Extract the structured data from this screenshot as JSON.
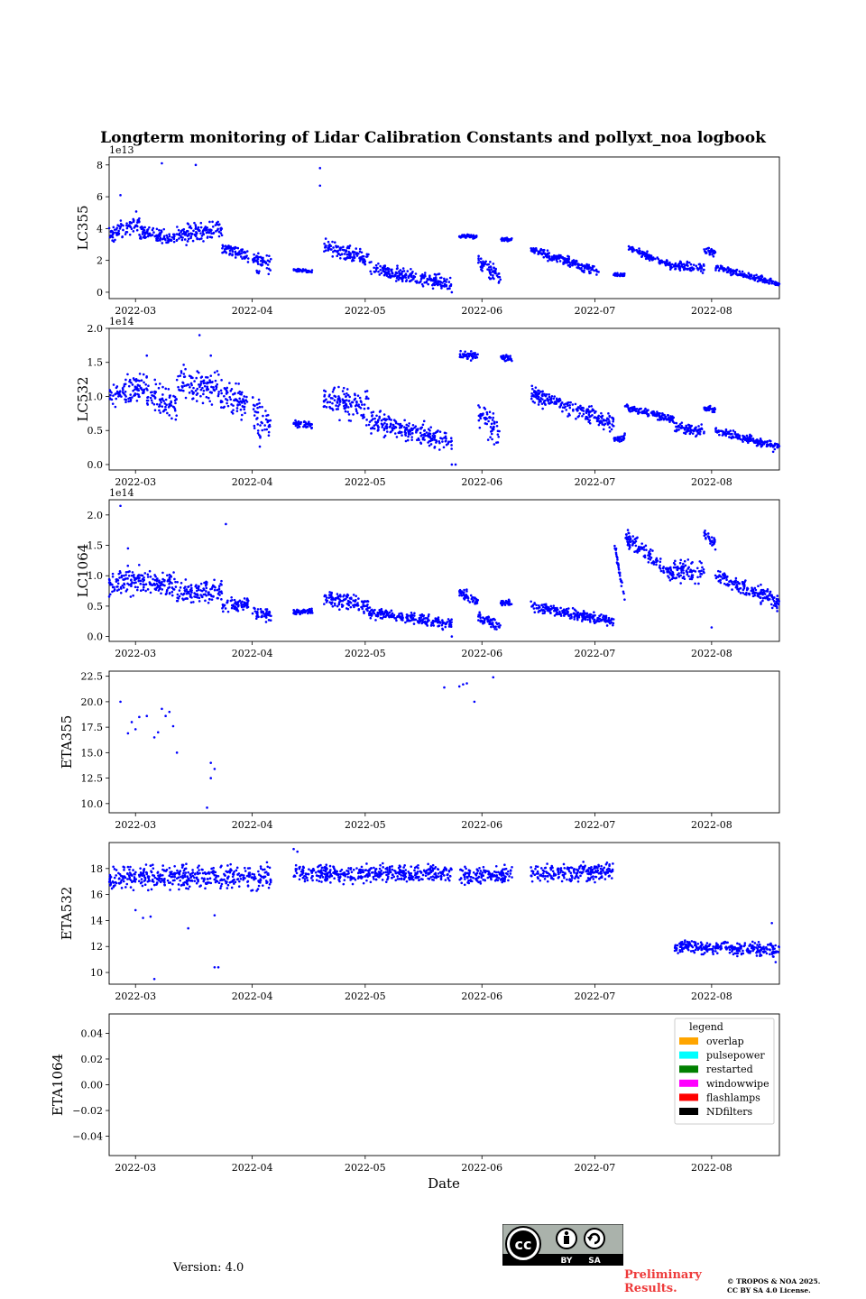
{
  "figure": {
    "title": "Longterm monitoring of Lidar Calibration Constants and pollyxt_noa logbook",
    "xlabel": "Date",
    "version": "Version: 4.0",
    "preliminary": [
      "Preliminary",
      "Results."
    ],
    "copyright": [
      "© TROPOS & NOA 2025.",
      "CC BY SA 4.0 License."
    ],
    "license_badge": {
      "by": "BY",
      "sa": "SA",
      "cc": "cc"
    }
  },
  "colors": {
    "points": "#0000ff",
    "overlap": "#ffa500",
    "pulsepower": "#00ffff",
    "restarted": "#008000",
    "windowwipe": "#ff00ff",
    "flashlamps": "#ff0000",
    "NDfilters": "#000000"
  },
  "chart_data": [
    {
      "type": "scatter",
      "ylabel": "LC355",
      "offset_text": "1e13",
      "xlim": [
        "2022-02-22",
        "2022-08-19"
      ],
      "x_ticks": [
        "2022-03",
        "2022-04",
        "2022-05",
        "2022-06",
        "2022-07",
        "2022-08"
      ],
      "ylim": [
        -0.4,
        8.5
      ],
      "y_ticks": [
        "0",
        "2",
        "4",
        "6",
        "8"
      ],
      "y_tick_values": [
        0,
        2,
        4,
        6,
        8
      ],
      "segments": [
        {
          "x": [
            "2022-02-22",
            "2022-03-02"
          ],
          "y": [
            3.5,
            4.5
          ],
          "noise": 0.6
        },
        {
          "x": [
            "2022-03-02",
            "2022-03-12"
          ],
          "y": [
            3.8,
            3.3
          ],
          "noise": 0.4
        },
        {
          "x": [
            "2022-03-12",
            "2022-03-24"
          ],
          "y": [
            3.7,
            4.0
          ],
          "noise": 0.6
        },
        {
          "x": [
            "2022-03-24",
            "2022-03-31"
          ],
          "y": [
            2.8,
            2.3
          ],
          "noise": 0.4
        },
        {
          "x": [
            "2022-04-01",
            "2022-04-06"
          ],
          "y": [
            2.0,
            1.8
          ],
          "noise": 0.6
        },
        {
          "x": [
            "2022-04-12",
            "2022-04-17"
          ],
          "y": [
            1.4,
            1.3
          ],
          "noise": 0.1
        },
        {
          "x": [
            "2022-04-20",
            "2022-05-02"
          ],
          "y": [
            3.0,
            2.0
          ],
          "noise": 0.5
        },
        {
          "x": [
            "2022-05-02",
            "2022-05-24"
          ],
          "y": [
            1.5,
            0.5
          ],
          "noise": 0.4
        },
        {
          "x": [
            "2022-05-26",
            "2022-05-31"
          ],
          "y": [
            3.5,
            3.5
          ],
          "noise": 0.1
        },
        {
          "x": [
            "2022-05-31",
            "2022-06-06"
          ],
          "y": [
            2.0,
            0.8
          ],
          "noise": 0.5
        },
        {
          "x": [
            "2022-06-06",
            "2022-06-09"
          ],
          "y": [
            3.3,
            3.3
          ],
          "noise": 0.1
        },
        {
          "x": [
            "2022-06-14",
            "2022-07-02"
          ],
          "y": [
            2.7,
            1.3
          ],
          "noise": 0.3
        },
        {
          "x": [
            "2022-07-06",
            "2022-07-09"
          ],
          "y": [
            1.1,
            1.1
          ],
          "noise": 0.1
        },
        {
          "x": [
            "2022-07-10",
            "2022-07-22"
          ],
          "y": [
            2.8,
            1.6
          ],
          "noise": 0.2
        },
        {
          "x": [
            "2022-07-22",
            "2022-07-30"
          ],
          "y": [
            1.7,
            1.5
          ],
          "noise": 0.3
        },
        {
          "x": [
            "2022-07-30",
            "2022-08-02"
          ],
          "y": [
            2.6,
            2.5
          ],
          "noise": 0.2
        },
        {
          "x": [
            "2022-08-02",
            "2022-08-19"
          ],
          "y": [
            1.6,
            0.5
          ],
          "noise": 0.2
        }
      ],
      "outliers": [
        [
          "2022-03-08",
          8.1
        ],
        [
          "2022-03-17",
          8.0
        ],
        [
          "2022-04-19",
          7.8
        ],
        [
          "2022-04-19",
          6.7
        ],
        [
          "2022-02-25",
          6.1
        ],
        [
          "2022-05-24",
          0.0
        ]
      ]
    },
    {
      "type": "scatter",
      "ylabel": "LC532",
      "offset_text": "1e14",
      "xlim": [
        "2022-02-22",
        "2022-08-19"
      ],
      "x_ticks": [
        "2022-03",
        "2022-04",
        "2022-05",
        "2022-06",
        "2022-07",
        "2022-08"
      ],
      "ylim": [
        -0.08,
        2.0
      ],
      "y_ticks": [
        "0.0",
        "0.5",
        "1.0",
        "1.5",
        "2.0"
      ],
      "y_tick_values": [
        0,
        0.5,
        1.0,
        1.5,
        2.0
      ],
      "segments": [
        {
          "x": [
            "2022-02-22",
            "2022-03-04"
          ],
          "y": [
            1.0,
            1.15
          ],
          "noise": 0.2
        },
        {
          "x": [
            "2022-03-04",
            "2022-03-12"
          ],
          "y": [
            1.05,
            0.85
          ],
          "noise": 0.2
        },
        {
          "x": [
            "2022-03-12",
            "2022-03-24"
          ],
          "y": [
            1.2,
            1.1
          ],
          "noise": 0.2
        },
        {
          "x": [
            "2022-03-24",
            "2022-03-31"
          ],
          "y": [
            1.0,
            0.9
          ],
          "noise": 0.2
        },
        {
          "x": [
            "2022-04-01",
            "2022-04-06"
          ],
          "y": [
            0.75,
            0.6
          ],
          "noise": 0.3
        },
        {
          "x": [
            "2022-04-12",
            "2022-04-17"
          ],
          "y": [
            0.6,
            0.58
          ],
          "noise": 0.05
        },
        {
          "x": [
            "2022-04-20",
            "2022-05-02"
          ],
          "y": [
            0.95,
            0.85
          ],
          "noise": 0.2
        },
        {
          "x": [
            "2022-05-02",
            "2022-05-24"
          ],
          "y": [
            0.65,
            0.35
          ],
          "noise": 0.15
        },
        {
          "x": [
            "2022-05-26",
            "2022-05-31"
          ],
          "y": [
            1.6,
            1.6
          ],
          "noise": 0.06
        },
        {
          "x": [
            "2022-05-31",
            "2022-06-06"
          ],
          "y": [
            0.8,
            0.45
          ],
          "noise": 0.2
        },
        {
          "x": [
            "2022-06-06",
            "2022-06-09"
          ],
          "y": [
            1.57,
            1.55
          ],
          "noise": 0.05
        },
        {
          "x": [
            "2022-06-14",
            "2022-07-06"
          ],
          "y": [
            1.05,
            0.6
          ],
          "noise": 0.12
        },
        {
          "x": [
            "2022-07-06",
            "2022-07-09"
          ],
          "y": [
            0.35,
            0.4
          ],
          "noise": 0.05
        },
        {
          "x": [
            "2022-07-09",
            "2022-07-22"
          ],
          "y": [
            0.85,
            0.65
          ],
          "noise": 0.05
        },
        {
          "x": [
            "2022-07-22",
            "2022-07-30"
          ],
          "y": [
            0.55,
            0.5
          ],
          "noise": 0.08
        },
        {
          "x": [
            "2022-07-30",
            "2022-08-02"
          ],
          "y": [
            0.82,
            0.8
          ],
          "noise": 0.04
        },
        {
          "x": [
            "2022-08-02",
            "2022-08-19"
          ],
          "y": [
            0.5,
            0.25
          ],
          "noise": 0.06
        }
      ],
      "outliers": [
        [
          "2022-03-18",
          1.9
        ],
        [
          "2022-03-21",
          1.6
        ],
        [
          "2022-03-04",
          1.6
        ],
        [
          "2022-05-24",
          0.0
        ],
        [
          "2022-05-25",
          0.0
        ]
      ]
    },
    {
      "type": "scatter",
      "ylabel": "LC1064",
      "offset_text": "1e14",
      "xlim": [
        "2022-02-22",
        "2022-08-19"
      ],
      "x_ticks": [
        "2022-03",
        "2022-04",
        "2022-05",
        "2022-06",
        "2022-07",
        "2022-08"
      ],
      "ylim": [
        -0.08,
        2.25
      ],
      "y_ticks": [
        "0.0",
        "0.5",
        "1.0",
        "1.5",
        "2.0"
      ],
      "y_tick_values": [
        0,
        0.5,
        1.0,
        1.5,
        2.0
      ],
      "segments": [
        {
          "x": [
            "2022-02-22",
            "2022-03-04"
          ],
          "y": [
            0.85,
            0.95
          ],
          "noise": 0.2
        },
        {
          "x": [
            "2022-03-04",
            "2022-03-12"
          ],
          "y": [
            0.9,
            0.85
          ],
          "noise": 0.2
        },
        {
          "x": [
            "2022-03-12",
            "2022-03-24"
          ],
          "y": [
            0.7,
            0.75
          ],
          "noise": 0.2
        },
        {
          "x": [
            "2022-03-24",
            "2022-03-31"
          ],
          "y": [
            0.5,
            0.55
          ],
          "noise": 0.1
        },
        {
          "x": [
            "2022-04-01",
            "2022-04-06"
          ],
          "y": [
            0.4,
            0.35
          ],
          "noise": 0.1
        },
        {
          "x": [
            "2022-04-12",
            "2022-04-17"
          ],
          "y": [
            0.4,
            0.42
          ],
          "noise": 0.05
        },
        {
          "x": [
            "2022-04-20",
            "2022-05-02"
          ],
          "y": [
            0.65,
            0.5
          ],
          "noise": 0.12
        },
        {
          "x": [
            "2022-05-02",
            "2022-05-24"
          ],
          "y": [
            0.4,
            0.2
          ],
          "noise": 0.08
        },
        {
          "x": [
            "2022-05-26",
            "2022-05-31"
          ],
          "y": [
            0.75,
            0.55
          ],
          "noise": 0.1
        },
        {
          "x": [
            "2022-05-31",
            "2022-06-06"
          ],
          "y": [
            0.3,
            0.2
          ],
          "noise": 0.1
        },
        {
          "x": [
            "2022-06-06",
            "2022-06-09"
          ],
          "y": [
            0.55,
            0.55
          ],
          "noise": 0.05
        },
        {
          "x": [
            "2022-06-14",
            "2022-07-06"
          ],
          "y": [
            0.5,
            0.25
          ],
          "noise": 0.08
        },
        {
          "x": [
            "2022-07-06",
            "2022-07-09"
          ],
          "y": [
            1.6,
            0.55
          ],
          "noise": 0.08
        },
        {
          "x": [
            "2022-07-09",
            "2022-07-22"
          ],
          "y": [
            1.65,
            1.0
          ],
          "noise": 0.12
        },
        {
          "x": [
            "2022-07-22",
            "2022-07-30"
          ],
          "y": [
            1.1,
            1.0
          ],
          "noise": 0.18
        },
        {
          "x": [
            "2022-07-30",
            "2022-08-02"
          ],
          "y": [
            1.7,
            1.5
          ],
          "noise": 0.1
        },
        {
          "x": [
            "2022-08-02",
            "2022-08-19"
          ],
          "y": [
            1.0,
            0.55
          ],
          "noise": 0.12
        }
      ],
      "outliers": [
        [
          "2022-02-25",
          2.15
        ],
        [
          "2022-03-25",
          1.85
        ],
        [
          "2022-02-27",
          1.45
        ],
        [
          "2022-05-24",
          0.0
        ],
        [
          "2022-08-01",
          0.15
        ]
      ]
    },
    {
      "type": "scatter",
      "ylabel": "ETA355",
      "offset_text": "",
      "xlim": [
        "2022-02-22",
        "2022-08-19"
      ],
      "x_ticks": [
        "2022-03",
        "2022-04",
        "2022-05",
        "2022-06",
        "2022-07",
        "2022-08"
      ],
      "ylim": [
        9.1,
        23.0
      ],
      "y_ticks": [
        "10.0",
        "12.5",
        "15.0",
        "17.5",
        "20.0",
        "22.5"
      ],
      "y_tick_values": [
        10,
        12.5,
        15,
        17.5,
        20,
        22.5
      ],
      "points": [
        [
          "2022-02-25",
          20.0
        ],
        [
          "2022-02-27",
          16.9
        ],
        [
          "2022-02-28",
          18.0
        ],
        [
          "2022-03-01",
          17.3
        ],
        [
          "2022-03-02",
          18.5
        ],
        [
          "2022-03-04",
          18.6
        ],
        [
          "2022-03-06",
          16.5
        ],
        [
          "2022-03-07",
          17.0
        ],
        [
          "2022-03-08",
          19.3
        ],
        [
          "2022-03-09",
          18.6
        ],
        [
          "2022-03-10",
          19.0
        ],
        [
          "2022-03-11",
          17.6
        ],
        [
          "2022-03-12",
          15.0
        ],
        [
          "2022-03-20",
          9.6
        ],
        [
          "2022-03-21",
          12.5
        ],
        [
          "2022-03-21",
          14.0
        ],
        [
          "2022-03-22",
          13.4
        ],
        [
          "2022-05-22",
          21.4
        ],
        [
          "2022-05-26",
          21.5
        ],
        [
          "2022-05-27",
          21.7
        ],
        [
          "2022-05-28",
          21.8
        ],
        [
          "2022-05-30",
          20.0
        ],
        [
          "2022-06-04",
          22.4
        ]
      ]
    },
    {
      "type": "scatter",
      "ylabel": "ETA532",
      "offset_text": "",
      "xlim": [
        "2022-02-22",
        "2022-08-19"
      ],
      "x_ticks": [
        "2022-03",
        "2022-04",
        "2022-05",
        "2022-06",
        "2022-07",
        "2022-08"
      ],
      "ylim": [
        9.1,
        20.0
      ],
      "y_ticks": [
        "10",
        "12",
        "14",
        "16",
        "18"
      ],
      "y_tick_values": [
        10,
        12,
        14,
        16,
        18
      ],
      "segments": [
        {
          "x": [
            "2022-02-22",
            "2022-04-06"
          ],
          "y": [
            17.3,
            17.4
          ],
          "noise": 0.9
        },
        {
          "x": [
            "2022-04-12",
            "2022-05-24"
          ],
          "y": [
            17.6,
            17.6
          ],
          "noise": 0.6
        },
        {
          "x": [
            "2022-05-26",
            "2022-06-09"
          ],
          "y": [
            17.4,
            17.6
          ],
          "noise": 0.7
        },
        {
          "x": [
            "2022-06-14",
            "2022-07-06"
          ],
          "y": [
            17.6,
            17.8
          ],
          "noise": 0.6
        },
        {
          "x": [
            "2022-07-22",
            "2022-08-19"
          ],
          "y": [
            12.0,
            11.8
          ],
          "noise": 0.5
        }
      ],
      "outliers": [
        [
          "2022-03-06",
          9.5
        ],
        [
          "2022-03-22",
          10.4
        ],
        [
          "2022-03-23",
          10.4
        ],
        [
          "2022-03-15",
          13.4
        ],
        [
          "2022-03-22",
          14.4
        ],
        [
          "2022-04-12",
          19.5
        ],
        [
          "2022-04-13",
          19.3
        ],
        [
          "2022-08-17",
          13.8
        ],
        [
          "2022-03-01",
          14.8
        ],
        [
          "2022-03-03",
          14.2
        ],
        [
          "2022-03-05",
          14.3
        ],
        [
          "2022-08-18",
          10.8
        ]
      ]
    },
    {
      "type": "scatter",
      "ylabel": "ETA1064",
      "offset_text": "",
      "xlim": [
        "2022-02-22",
        "2022-08-19"
      ],
      "x_ticks": [
        "2022-03",
        "2022-04",
        "2022-05",
        "2022-06",
        "2022-07",
        "2022-08"
      ],
      "ylim": [
        -0.055,
        0.055
      ],
      "y_ticks": [
        "−0.04",
        "−0.02",
        "0.00",
        "0.02",
        "0.04"
      ],
      "y_tick_values": [
        -0.04,
        -0.02,
        0.0,
        0.02,
        0.04
      ],
      "points": [],
      "legend": {
        "title": "legend",
        "placement": "upper right",
        "entries": [
          "overlap",
          "pulsepower",
          "restarted",
          "windowwipe",
          "flashlamps",
          "NDfilters"
        ]
      }
    }
  ]
}
